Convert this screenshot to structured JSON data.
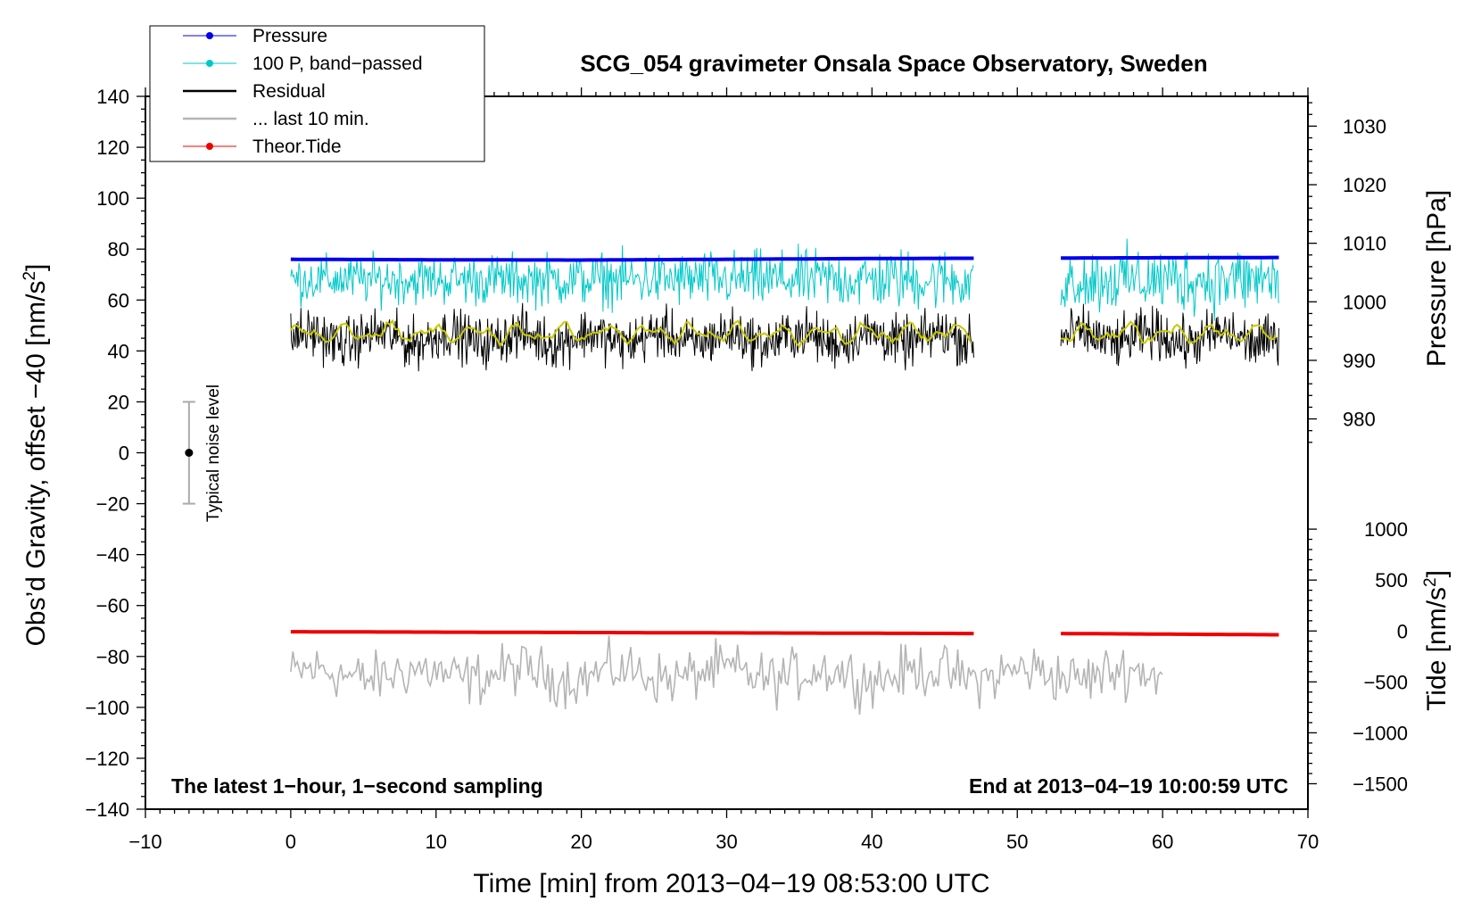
{
  "chart_data": {
    "type": "line",
    "title": "SCG_054 gravimeter Onsala Space Observatory, Sweden",
    "xlabel": "Time [min] from 2013−04−19 08:53:00 UTC",
    "ylabel_main": "Obs’d Gravity, offset −40 [nm/s",
    "ylabel_main_sup": "2",
    "ylabel_main_end": "]",
    "ylabel_pressure": "Pressure [hPa]",
    "ylabel_tide": "Tide [nm/s",
    "ylabel_tide_sup": "2",
    "ylabel_tide_end": "]",
    "xlim": [
      -10,
      70
    ],
    "ylim": [
      -140,
      140
    ],
    "x_ticks": [
      "−10",
      "0",
      "10",
      "20",
      "30",
      "40",
      "50",
      "60",
      "70"
    ],
    "x_tick_values": [
      -10,
      0,
      10,
      20,
      30,
      40,
      50,
      60,
      70
    ],
    "y_ticks": [
      "140",
      "120",
      "100",
      "80",
      "60",
      "40",
      "20",
      "0",
      "−20",
      "−40",
      "−60",
      "−80",
      "−100",
      "−120",
      "−140"
    ],
    "y_tick_values": [
      140,
      120,
      100,
      80,
      60,
      40,
      20,
      0,
      -20,
      -40,
      -60,
      -80,
      -100,
      -120,
      -140
    ],
    "pressure_ticks": [
      "1030",
      "1020",
      "1010",
      "1000",
      "990",
      "980"
    ],
    "pressure_tick_values": [
      1030,
      1020,
      1010,
      1000,
      990,
      980
    ],
    "pressure_mapping": {
      "hpa_at_y80": 1009,
      "y_units_per_hpa": 2.3
    },
    "tide_ticks": [
      "1000",
      "500",
      "0",
      "−500",
      "−1000",
      "−1500"
    ],
    "tide_tick_values": [
      1000,
      500,
      0,
      -500,
      -1000,
      -1500
    ],
    "tide_mapping": {
      "nms2_at_y_neg70": 0,
      "y_units_per_nms2": 0.04
    },
    "legend": [
      {
        "label": "Pressure",
        "color": "#0000ee",
        "marker": "dot"
      },
      {
        "label": "100 P, band−passed",
        "color": "#00c8c8",
        "marker": "dot"
      },
      {
        "label": "Residual",
        "color": "#000000",
        "marker": "none"
      },
      {
        "label": "... last 10 min.",
        "color": "#b4b4b4",
        "marker": "none"
      },
      {
        "label": "Theor.Tide",
        "color": "#ee0000",
        "marker": "dot"
      }
    ],
    "annotations": {
      "bottom_left": "The latest 1−hour, 1−second sampling",
      "bottom_right": "End at 2013−04−19 10:00:59 UTC",
      "noise_label": "Typical noise level"
    },
    "noise_bar": {
      "x": -7,
      "center": 0,
      "low": -20,
      "high": 20
    },
    "segments": [
      [
        0,
        47
      ],
      [
        53,
        68
      ]
    ],
    "series": [
      {
        "name": "Pressure",
        "color": "#0000ee",
        "points": [
          [
            0,
            76
          ],
          [
            10,
            75.8
          ],
          [
            20,
            75.7
          ],
          [
            30,
            76
          ],
          [
            40,
            76.3
          ],
          [
            47,
            76.4
          ],
          [
            53,
            76.5
          ],
          [
            60,
            76.6
          ],
          [
            68,
            76.7
          ]
        ]
      },
      {
        "name": "100 P, band−passed",
        "color": "#00c8c8",
        "center": 68,
        "amplitude": 8
      },
      {
        "name": "Residual",
        "color": "#000000",
        "center": 45,
        "amplitude": 8
      },
      {
        "name": "Residual smoothed",
        "color": "#c8c800",
        "center": 47,
        "amplitude": 4
      },
      {
        "name": "Theor.Tide",
        "color": "#ee0000",
        "points": [
          [
            0,
            -70.3
          ],
          [
            20,
            -70.6
          ],
          [
            40,
            -70.9
          ],
          [
            47,
            -71.0
          ],
          [
            53,
            -71.0
          ],
          [
            68,
            -71.5
          ]
        ]
      },
      {
        "name": "... last 10 min.",
        "color": "#b4b4b4",
        "x_range": [
          0,
          60
        ],
        "center": -87,
        "amplitude": 8
      }
    ]
  }
}
